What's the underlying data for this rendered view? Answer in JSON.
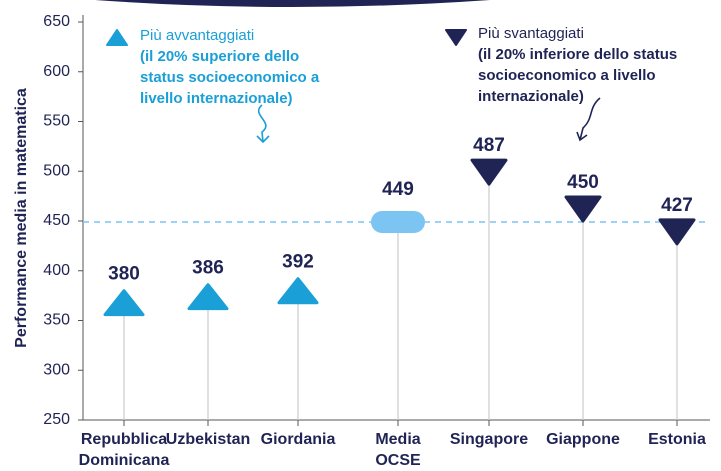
{
  "chart_data": {
    "type": "dot",
    "y_label": "Performance media in matematica",
    "categories": [
      [
        "Repubblica",
        "Dominicana"
      ],
      [
        "Uzbekistan"
      ],
      [
        "Giordania"
      ],
      [
        "Media",
        "OCSE"
      ],
      [
        "Singapore"
      ],
      [
        "Giappone"
      ],
      [
        "Estonia"
      ]
    ],
    "values": [
      380,
      386,
      392,
      449,
      487,
      450,
      427
    ],
    "markers": [
      "up",
      "up",
      "up",
      "pill",
      "down",
      "down",
      "down"
    ],
    "marker_colors": {
      "up": "#1a9fd6",
      "pill": "#7cc4f2",
      "down": "#1f2454"
    },
    "ylim": [
      250,
      650
    ],
    "yticks": [
      250,
      300,
      350,
      400,
      450,
      500,
      550,
      600,
      650
    ],
    "annotations": [
      {
        "marker": "up",
        "title": "Più avvantaggiati",
        "lines": [
          "(il 20% superiore dello",
          "status socioeconomico a",
          "livello internazionale)"
        ]
      },
      {
        "marker": "down",
        "title": "Più svantaggiati",
        "lines": [
          "(il 20% inferiore dello status",
          "socioeconomico a livello",
          "internazionale)"
        ]
      }
    ]
  }
}
